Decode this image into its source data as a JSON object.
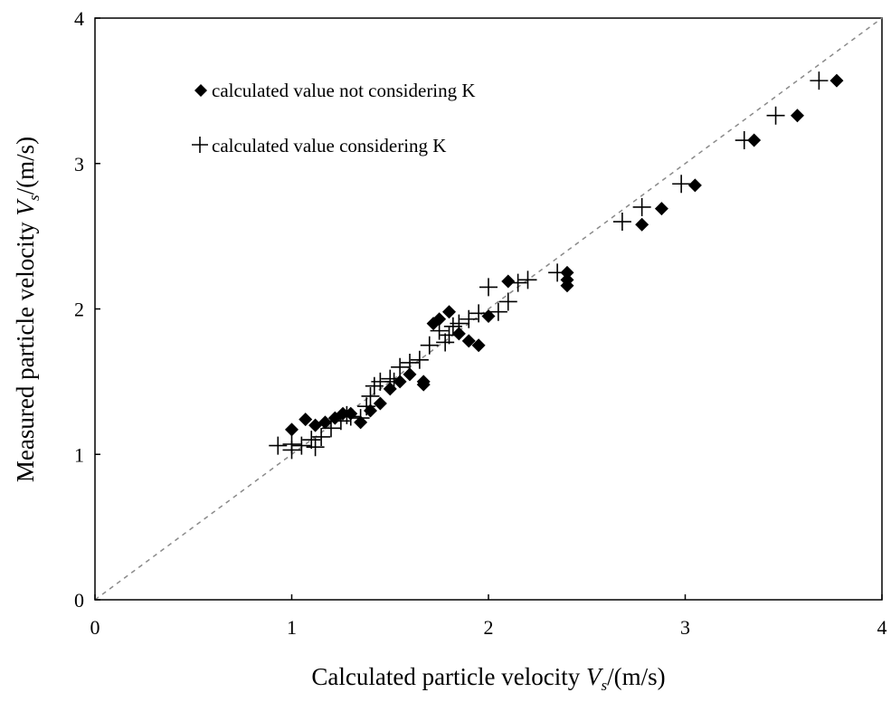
{
  "chart_data": {
    "type": "scatter",
    "xlabel": {
      "prefix": "Calculated  particle velocity ",
      "var": "V",
      "sub": "s",
      "suffix": "/(m/s)"
    },
    "ylabel": {
      "prefix": "Measured particle velocity ",
      "var": "V",
      "sub": "s",
      "suffix": "/(m/s)"
    },
    "xlim": [
      0,
      4
    ],
    "ylim": [
      0,
      4
    ],
    "xticks": [
      0,
      1,
      2,
      3,
      4
    ],
    "yticks": [
      0,
      1,
      2,
      3,
      4
    ],
    "grid": false,
    "legend_position": "top-left",
    "reference_line": {
      "style": "dashed",
      "from": [
        0,
        0
      ],
      "to": [
        4,
        4
      ]
    },
    "series": [
      {
        "name": "calculated value not considering K",
        "marker": "diamond",
        "color": "#000000",
        "points": [
          [
            1.0,
            1.17
          ],
          [
            1.07,
            1.24
          ],
          [
            1.12,
            1.2
          ],
          [
            1.17,
            1.22
          ],
          [
            1.22,
            1.25
          ],
          [
            1.26,
            1.28
          ],
          [
            1.3,
            1.28
          ],
          [
            1.35,
            1.22
          ],
          [
            1.4,
            1.3
          ],
          [
            1.45,
            1.35
          ],
          [
            1.5,
            1.45
          ],
          [
            1.55,
            1.5
          ],
          [
            1.6,
            1.55
          ],
          [
            1.67,
            1.5
          ],
          [
            1.67,
            1.48
          ],
          [
            1.72,
            1.9
          ],
          [
            1.75,
            1.93
          ],
          [
            1.8,
            1.98
          ],
          [
            1.85,
            1.83
          ],
          [
            1.9,
            1.78
          ],
          [
            1.95,
            1.75
          ],
          [
            2.0,
            1.95
          ],
          [
            2.1,
            2.19
          ],
          [
            2.4,
            2.25
          ],
          [
            2.4,
            2.2
          ],
          [
            2.4,
            2.16
          ],
          [
            2.78,
            2.58
          ],
          [
            2.88,
            2.69
          ],
          [
            3.05,
            2.85
          ],
          [
            3.35,
            3.16
          ],
          [
            3.57,
            3.33
          ],
          [
            3.77,
            3.57
          ]
        ]
      },
      {
        "name": "calculated value considering K",
        "marker": "plus",
        "color": "#000000",
        "points": [
          [
            0.93,
            1.06
          ],
          [
            1.0,
            1.03
          ],
          [
            1.0,
            1.07
          ],
          [
            1.05,
            1.06
          ],
          [
            1.1,
            1.1
          ],
          [
            1.12,
            1.05
          ],
          [
            1.15,
            1.12
          ],
          [
            1.2,
            1.18
          ],
          [
            1.25,
            1.23
          ],
          [
            1.28,
            1.27
          ],
          [
            1.3,
            1.26
          ],
          [
            1.35,
            1.25
          ],
          [
            1.38,
            1.33
          ],
          [
            1.4,
            1.4
          ],
          [
            1.42,
            1.47
          ],
          [
            1.45,
            1.5
          ],
          [
            1.5,
            1.52
          ],
          [
            1.52,
            1.5
          ],
          [
            1.55,
            1.6
          ],
          [
            1.6,
            1.63
          ],
          [
            1.65,
            1.65
          ],
          [
            1.7,
            1.75
          ],
          [
            1.75,
            1.85
          ],
          [
            1.78,
            1.77
          ],
          [
            1.8,
            1.82
          ],
          [
            1.82,
            1.88
          ],
          [
            1.85,
            1.9
          ],
          [
            1.9,
            1.93
          ],
          [
            1.95,
            1.97
          ],
          [
            2.0,
            2.15
          ],
          [
            2.05,
            1.98
          ],
          [
            2.1,
            2.05
          ],
          [
            2.15,
            2.18
          ],
          [
            2.2,
            2.2
          ],
          [
            2.35,
            2.25
          ],
          [
            2.68,
            2.6
          ],
          [
            2.78,
            2.7
          ],
          [
            2.98,
            2.86
          ],
          [
            3.3,
            3.16
          ],
          [
            3.46,
            3.33
          ],
          [
            3.68,
            3.57
          ]
        ]
      }
    ]
  }
}
